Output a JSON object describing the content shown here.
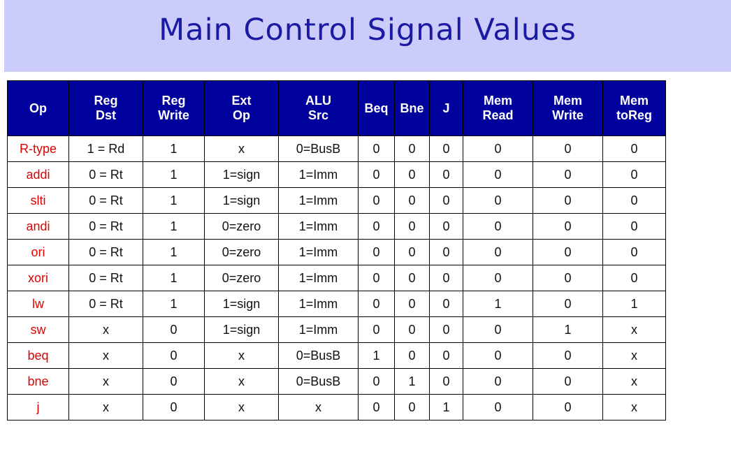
{
  "title": "Main Control Signal Values",
  "colors": {
    "title_bg": "#ccccfb",
    "title_text": "#1a1aa3",
    "header_bg": "#00009c",
    "header_text": "#ffffff",
    "op_text": "#e00000"
  },
  "table": {
    "headers": [
      "Op",
      "Reg\nDst",
      "Reg\nWrite",
      "Ext\nOp",
      "ALU\nSrc",
      "Beq",
      "Bne",
      "J",
      "Mem\nRead",
      "Mem\nWrite",
      "Mem\ntoReg"
    ],
    "rows": [
      [
        "R-type",
        "1 = Rd",
        "1",
        "x",
        "0=BusB",
        "0",
        "0",
        "0",
        "0",
        "0",
        "0"
      ],
      [
        "addi",
        "0 = Rt",
        "1",
        "1=sign",
        "1=Imm",
        "0",
        "0",
        "0",
        "0",
        "0",
        "0"
      ],
      [
        "slti",
        "0 = Rt",
        "1",
        "1=sign",
        "1=Imm",
        "0",
        "0",
        "0",
        "0",
        "0",
        "0"
      ],
      [
        "andi",
        "0 = Rt",
        "1",
        "0=zero",
        "1=Imm",
        "0",
        "0",
        "0",
        "0",
        "0",
        "0"
      ],
      [
        "ori",
        "0 = Rt",
        "1",
        "0=zero",
        "1=Imm",
        "0",
        "0",
        "0",
        "0",
        "0",
        "0"
      ],
      [
        "xori",
        "0 = Rt",
        "1",
        "0=zero",
        "1=Imm",
        "0",
        "0",
        "0",
        "0",
        "0",
        "0"
      ],
      [
        "lw",
        "0 = Rt",
        "1",
        "1=sign",
        "1=Imm",
        "0",
        "0",
        "0",
        "1",
        "0",
        "1"
      ],
      [
        "sw",
        "x",
        "0",
        "1=sign",
        "1=Imm",
        "0",
        "0",
        "0",
        "0",
        "1",
        "x"
      ],
      [
        "beq",
        "x",
        "0",
        "x",
        "0=BusB",
        "1",
        "0",
        "0",
        "0",
        "0",
        "x"
      ],
      [
        "bne",
        "x",
        "0",
        "x",
        "0=BusB",
        "0",
        "1",
        "0",
        "0",
        "0",
        "x"
      ],
      [
        "j",
        "x",
        "0",
        "x",
        "x",
        "0",
        "0",
        "1",
        "0",
        "0",
        "x"
      ]
    ]
  }
}
